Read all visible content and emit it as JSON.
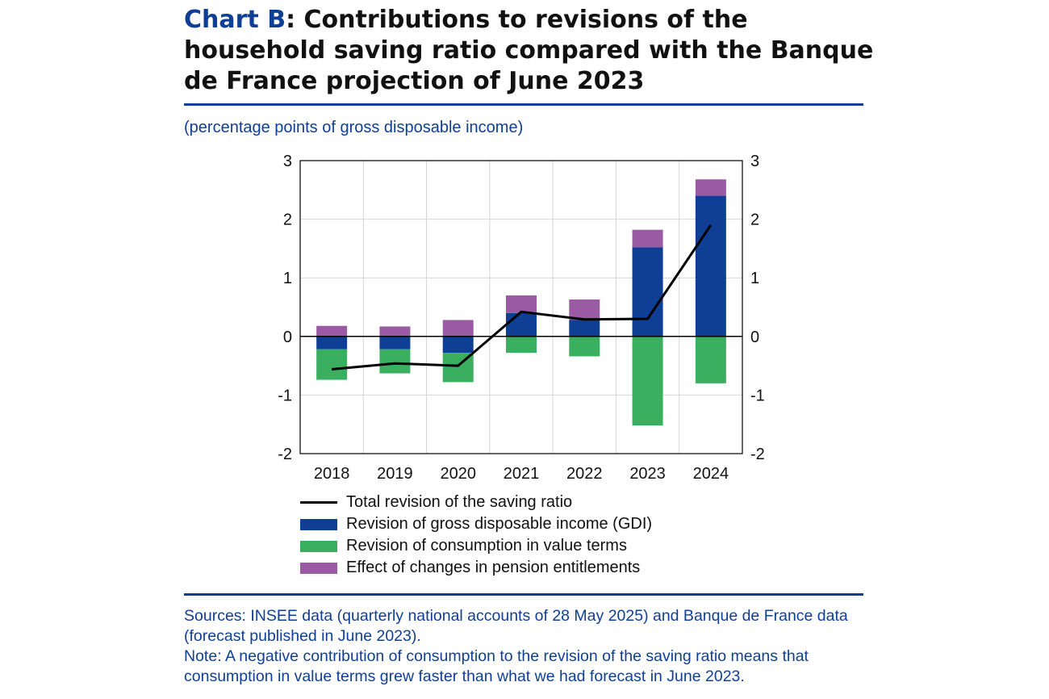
{
  "title": {
    "lead": "Chart B",
    "rest": ": Contributions to revisions of the household saving ratio compared with the Banque de France projection of June 2023"
  },
  "subtitle": "(percentage points of gross disposable income)",
  "colors": {
    "gdi": "#0f3f95",
    "consumption": "#3aaf5f",
    "pension": "#9b5aa4",
    "total": "#000000",
    "accent": "#0f3f95"
  },
  "chart_data": {
    "type": "bar",
    "stacked": true,
    "categories": [
      "2018",
      "2019",
      "2020",
      "2021",
      "2022",
      "2023",
      "2024"
    ],
    "ylim": [
      -2,
      3
    ],
    "yticks": [
      "-2",
      "-1",
      "0",
      "1",
      "2",
      "3"
    ],
    "grid": true,
    "series": [
      {
        "key": "gdi",
        "name": "Revision of gross disposable income (GDI)",
        "values": [
          -0.22,
          -0.22,
          -0.28,
          0.4,
          0.28,
          1.52,
          2.4
        ]
      },
      {
        "key": "consumption",
        "name": "Revision of consumption in value terms",
        "values": [
          -0.52,
          -0.41,
          -0.5,
          -0.28,
          -0.34,
          -1.52,
          -0.8
        ]
      },
      {
        "key": "pension",
        "name": "Effect of changes in pension entitlements",
        "values": [
          0.18,
          0.17,
          0.28,
          0.3,
          0.35,
          0.3,
          0.28
        ]
      }
    ],
    "line": {
      "key": "total",
      "name": "Total revision of the saving ratio",
      "values": [
        -0.56,
        -0.46,
        -0.5,
        0.42,
        0.29,
        0.3,
        1.9
      ]
    },
    "legend_position": "bottom"
  },
  "footer": {
    "sources": "Sources: INSEE data (quarterly national accounts of 28 May 2025) and Banque de France data (forecast published in June 2023).",
    "note": "Note: A negative contribution of consumption to the revision of the saving ratio means that consumption in value terms grew faster than what we had forecast in June 2023."
  }
}
